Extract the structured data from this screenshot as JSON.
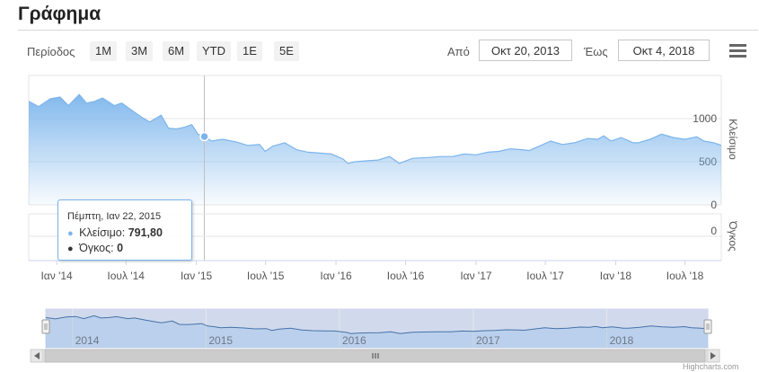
{
  "page": {
    "title": "Γράφημα"
  },
  "toolbar": {
    "period_label": "Περίοδος",
    "range_buttons": [
      "1M",
      "3M",
      "6M",
      "YTD",
      "1E",
      "5E"
    ],
    "from_label": "Από",
    "from_value": "Οκτ 20, 2013",
    "to_label": "Έως",
    "to_value": "Οκτ 4, 2018"
  },
  "tooltip": {
    "date": "Πέμπτη, Ιαν 22, 2015",
    "close_label": "Κλείσιμο:",
    "close_value": "791,80",
    "volume_label": "Όγκος:",
    "volume_value": "0",
    "close_color": "#7cb5ec",
    "volume_color": "#333333"
  },
  "credits": "Highcharts.com",
  "chart_data": {
    "type": "area",
    "series": [
      {
        "name": "Κλείσιμο",
        "x": [
          "2013-10-20",
          "2013-11-15",
          "2013-12-15",
          "2014-01-10",
          "2014-02-01",
          "2014-03-01",
          "2014-03-20",
          "2014-04-10",
          "2014-05-01",
          "2014-06-01",
          "2014-06-20",
          "2014-07-15",
          "2014-08-10",
          "2014-09-01",
          "2014-10-01",
          "2014-10-20",
          "2014-11-10",
          "2014-12-01",
          "2014-12-20",
          "2015-01-05",
          "2015-01-22",
          "2015-02-10",
          "2015-03-10",
          "2015-04-15",
          "2015-05-15",
          "2015-06-15",
          "2015-06-30",
          "2015-07-20",
          "2015-08-20",
          "2015-09-20",
          "2015-10-20",
          "2015-11-20",
          "2015-12-20",
          "2016-01-20",
          "2016-02-01",
          "2016-02-20",
          "2016-03-20",
          "2016-04-20",
          "2016-05-20",
          "2016-06-15",
          "2016-06-25",
          "2016-07-20",
          "2016-09-01",
          "2016-10-01",
          "2016-11-01",
          "2016-12-01",
          "2017-01-01",
          "2017-02-01",
          "2017-03-01",
          "2017-04-01",
          "2017-05-01",
          "2017-05-20",
          "2017-06-15",
          "2017-07-15",
          "2017-08-15",
          "2017-09-15",
          "2017-10-20",
          "2017-11-15",
          "2017-12-01",
          "2017-12-20",
          "2018-01-15",
          "2018-02-01",
          "2018-02-15",
          "2018-03-01",
          "2018-04-01",
          "2018-05-01",
          "2018-06-01",
          "2018-07-01",
          "2018-08-01",
          "2018-08-20",
          "2018-09-15",
          "2018-10-04"
        ],
        "values": [
          1200,
          1140,
          1230,
          1250,
          1150,
          1280,
          1180,
          1200,
          1240,
          1150,
          1180,
          1100,
          1020,
          960,
          1040,
          890,
          880,
          900,
          930,
          820,
          791.8,
          740,
          760,
          730,
          690,
          700,
          620,
          680,
          720,
          640,
          610,
          600,
          590,
          530,
          480,
          500,
          510,
          520,
          560,
          480,
          500,
          540,
          550,
          560,
          560,
          590,
          580,
          610,
          620,
          650,
          640,
          630,
          680,
          740,
          700,
          720,
          770,
          760,
          800,
          740,
          780,
          750,
          720,
          720,
          760,
          820,
          780,
          760,
          790,
          740,
          720,
          690
        ]
      },
      {
        "name": "Όγκος",
        "x": [
          "2013-10-20",
          "2018-10-04"
        ],
        "values": [
          0,
          0
        ]
      }
    ],
    "y_axis_close": {
      "label": "Κλείσιμο",
      "ticks": [
        0,
        500,
        1000
      ],
      "range": [
        0,
        1500
      ]
    },
    "y_axis_volume": {
      "label": "Όγκος",
      "ticks": [
        0
      ]
    },
    "x_axis_ticks": [
      "Ιαν '14",
      "Ιουλ '14",
      "Ιαν '15",
      "Ιουλ '15",
      "Ιαν '16",
      "Ιουλ '16",
      "Ιαν '17",
      "Ιουλ '17",
      "Ιαν '18",
      "Ιουλ '18"
    ],
    "navigator_ticks": [
      "2014",
      "2015",
      "2016",
      "2017",
      "2018"
    ],
    "x_range": [
      "2013-10-20",
      "2018-10-04"
    ],
    "legend": "none",
    "grid": true,
    "colors": {
      "line": "#7cb5ec",
      "grid": "#e6e6e6",
      "navigator_mask": "rgba(102,133,194,0.3)"
    }
  }
}
